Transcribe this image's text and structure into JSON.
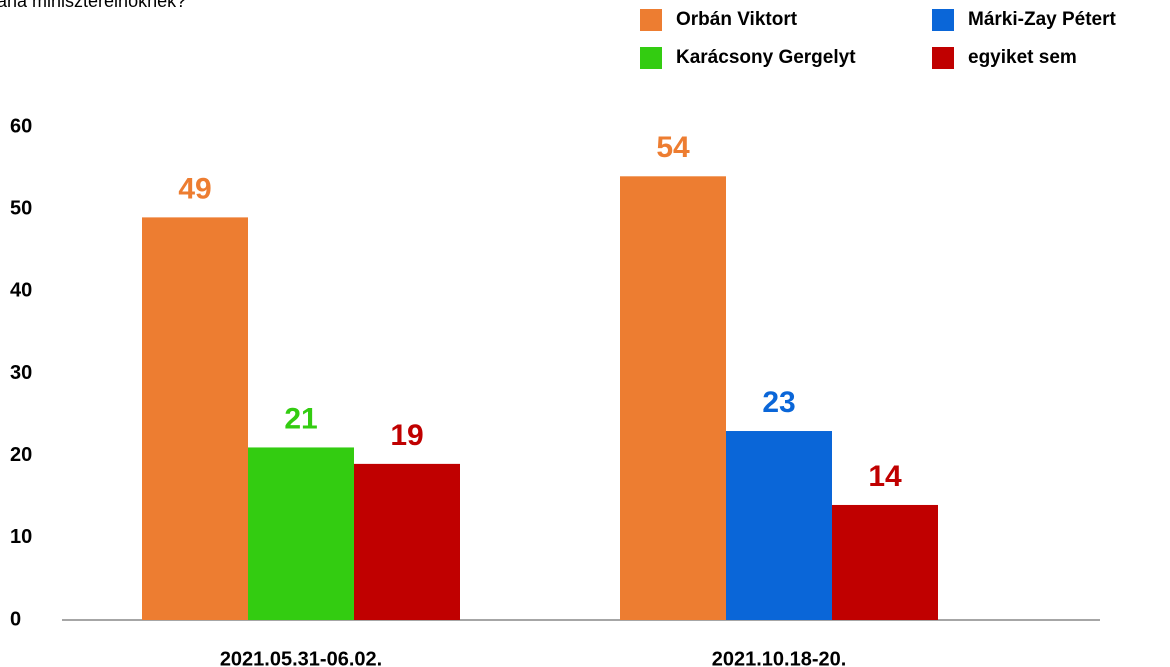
{
  "chart_data": {
    "type": "bar",
    "title": "tana miniszterelnöknek?",
    "categories": [
      "2021.05.31-06.02.",
      "2021.10.18-20."
    ],
    "series": [
      {
        "name": "Orbán Viktort",
        "color": "#ed7d31",
        "values": [
          49,
          54
        ]
      },
      {
        "name": "Karácsony Gergelyt",
        "color": "#33cc11",
        "values": [
          21,
          null
        ]
      },
      {
        "name": "Márki-Zay Pétert",
        "color": "#0a66d8",
        "values": [
          null,
          23
        ]
      },
      {
        "name": "egyiket sem",
        "color": "#c00000",
        "values": [
          19,
          14
        ]
      }
    ],
    "ylim": [
      0,
      60
    ],
    "yticks": [
      0,
      10,
      20,
      30,
      40,
      50,
      60
    ],
    "grid": false,
    "legend": "top-right"
  }
}
